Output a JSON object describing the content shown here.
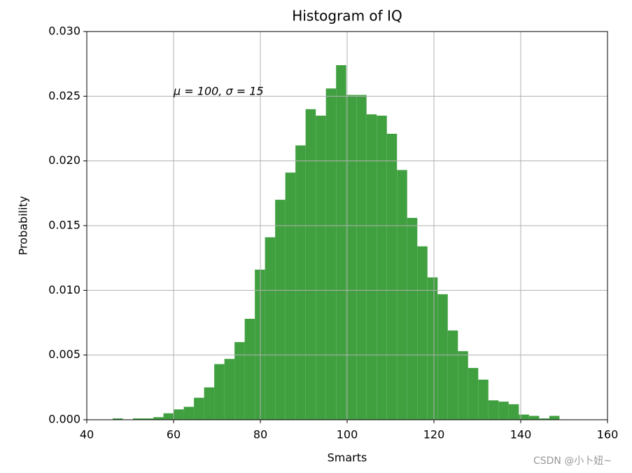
{
  "chart_data": {
    "type": "histogram",
    "title": "Histogram of IQ",
    "x_label": "Smarts",
    "y_label": "Probability",
    "annotation": "μ = 100,  σ = 15",
    "bins": [
      45.97,
      48.31,
      50.65,
      52.99,
      55.33,
      57.67,
      60.01,
      62.35,
      64.69,
      67.03,
      69.37,
      71.71,
      74.05,
      76.39,
      78.73,
      81.07,
      83.41,
      85.75,
      88.09,
      90.43,
      92.77,
      95.11,
      97.45,
      99.79,
      102.13,
      104.47,
      106.81,
      109.15,
      111.49,
      113.83,
      116.17,
      118.51,
      120.85,
      123.19,
      125.53,
      127.87,
      130.21,
      132.55,
      134.89,
      137.23,
      139.57,
      141.91,
      144.25,
      146.59,
      148.93
    ],
    "values": [
      0.0001,
      0,
      0.0001,
      0.0001,
      0.0002,
      0.0005,
      0.0008,
      0.001,
      0.0017,
      0.0025,
      0.0043,
      0.0047,
      0.006,
      0.0078,
      0.0116,
      0.0141,
      0.017,
      0.0191,
      0.0212,
      0.024,
      0.0235,
      0.0256,
      0.0274,
      0.0251,
      0.0251,
      0.0236,
      0.0235,
      0.0221,
      0.0193,
      0.0156,
      0.0134,
      0.011,
      0.0097,
      0.0069,
      0.0053,
      0.004,
      0.0031,
      0.0015,
      0.0014,
      0.0012,
      0.0004,
      0.0003,
      0.0001,
      0.0003
    ],
    "color": "#40a040",
    "xlim": [
      40,
      160
    ],
    "xticks": [
      40,
      60,
      80,
      100,
      120,
      140,
      160
    ],
    "ylim": [
      0,
      0.03
    ],
    "yticks": [
      {
        "value": 0,
        "label": "0.000"
      },
      0.005,
      {
        "value": 0.01,
        "label": "0.010"
      },
      0.015,
      {
        "value": 0.02,
        "label": "0.020"
      },
      0.025,
      {
        "value": 0.03,
        "label": "0.030"
      }
    ],
    "grid": true
  },
  "watermark": "CSDN @小卜妞~"
}
